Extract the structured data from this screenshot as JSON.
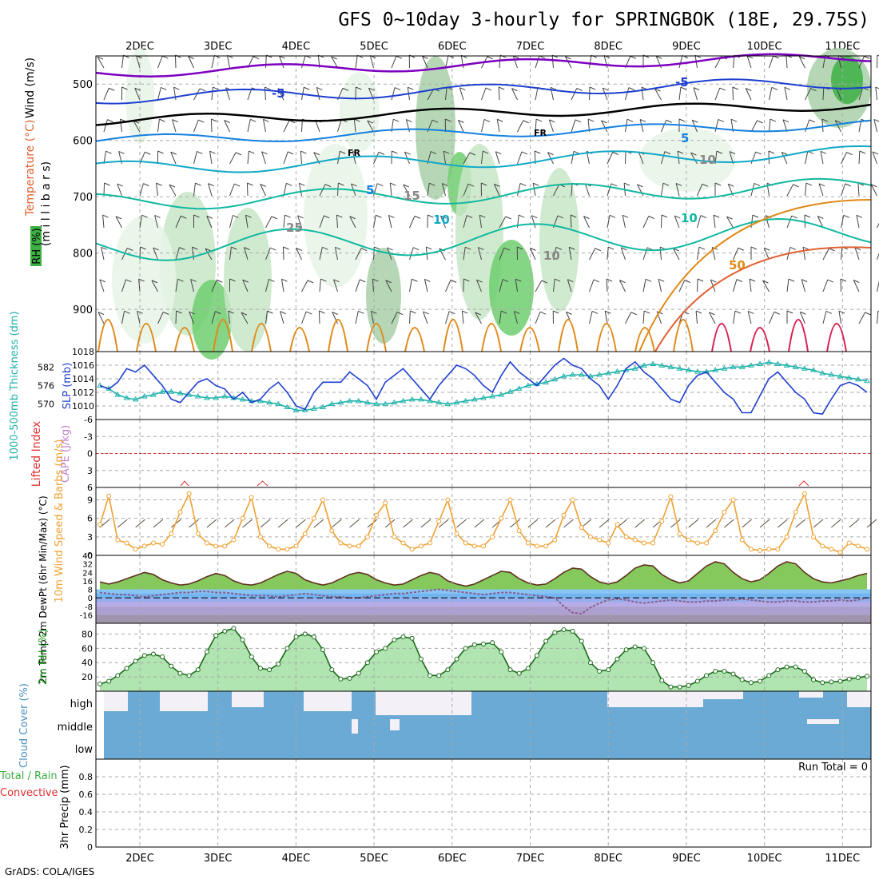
{
  "title": "GFS 0~10day 3-hourly for SPRINGBOK (18E, 29.75S)",
  "credit": "GrADS: COLA/IGES",
  "colors": {
    "grid": "#a9a9a9",
    "rh_fill": [
      "#e8f5e8",
      "#c8e6c8",
      "#a8d0a8",
      "#6fcf6f",
      "#3cb043"
    ],
    "temp_contours": [
      "#7d00c0",
      "#1f3fd0",
      "#1480e0",
      "#10a8c8",
      "#10b8a0",
      "#e08a1a",
      "#e06030",
      "#d82050"
    ],
    "slp": "#1f3fd0",
    "thickness": "#20b2aa",
    "lifted_zero": "#e03030",
    "cape": "#e03030",
    "wind_speed": "#f0a030",
    "barb": "#5a4a3a",
    "temp_line": "#603020",
    "dew_line": "#8a5a8a",
    "rh_line": "#1a6a1a",
    "cloud_blue": "#6aaad4",
    "cloud_clear": "#f4f0f8"
  },
  "chart_data": [
    {
      "panel": "upper_air",
      "type": "contour",
      "x_ticks": [
        "2DEC",
        "3DEC",
        "4DEC",
        "5DEC",
        "6DEC",
        "7DEC",
        "8DEC",
        "9DEC",
        "10DEC",
        "11DEC"
      ],
      "y_ticks": [
        500,
        600,
        700,
        800,
        900
      ],
      "ylabel": "(m i l l i b a r s)",
      "legend": [
        "Wind (m/s)",
        "Temperature (°C)",
        "RH (%)"
      ],
      "contour_labels": [
        "-5",
        "-5",
        "FR",
        "FR",
        "5",
        "5",
        "10",
        "10",
        "15",
        "10",
        "10",
        "50",
        "25"
      ],
      "temp_levels": [
        -10,
        -5,
        0,
        5,
        10,
        15,
        20,
        25,
        30
      ]
    },
    {
      "panel": "slp_thickness",
      "type": "line",
      "ylabel_left": "1000-500mb Thickness (dm)",
      "ylabel_right": "SLP (mb)",
      "y_ticks_left": [
        570,
        576,
        582
      ],
      "y_ticks_right": [
        1010,
        1012,
        1014,
        1016,
        1018
      ],
      "slp_ylim": [
        1008,
        1018
      ],
      "thk_ylim": [
        565,
        587
      ],
      "series": [
        {
          "name": "SLP (mb)",
          "values": [
            1013.0,
            1012.5,
            1013.5,
            1015.5,
            1015.0,
            1016.0,
            1014.5,
            1013.0,
            1011.0,
            1010.5,
            1012.0,
            1013.5,
            1014.0,
            1013.0,
            1012.5,
            1011.0,
            1012.0,
            1010.5,
            1011.0,
            1012.5,
            1013.5,
            1012.0,
            1010.0,
            1009.5,
            1012.0,
            1013.5,
            1013.5,
            1013.5,
            1015.0,
            1014.0,
            1013.0,
            1011.0,
            1013.5,
            1014.5,
            1015.5,
            1014.0,
            1012.5,
            1011.0,
            1013.0,
            1014.5,
            1016.0,
            1015.5,
            1014.5,
            1013.0,
            1012.0,
            1014.5,
            1016.5,
            1015.0,
            1014.0,
            1013.0,
            1014.5,
            1016.0,
            1017.0,
            1016.0,
            1015.5,
            1014.0,
            1013.0,
            1011.0,
            1013.0,
            1015.5,
            1016.5,
            1015.0,
            1014.0,
            1012.5,
            1011.0,
            1010.5,
            1013.0,
            1014.5,
            1015.0,
            1013.5,
            1012.0,
            1011.0,
            1009.0,
            1009.0,
            1011.5,
            1014.0,
            1015.0,
            1013.5,
            1012.0,
            1011.0,
            1009.0,
            1008.8,
            1011.0,
            1013.0,
            1013.5,
            1013.0,
            1012.0
          ]
        },
        {
          "name": "Thickness (dm)",
          "values": [
            576.0,
            575.0,
            573.0,
            572.0,
            571.5,
            572.5,
            573.0,
            574.0,
            574.0,
            573.5,
            573.0,
            572.5,
            572.0,
            572.0,
            572.5,
            572.0,
            571.5,
            571.0,
            571.0,
            570.5,
            570.0,
            569.0,
            568.0,
            568.0,
            568.5,
            569.0,
            570.0,
            570.5,
            571.0,
            571.0,
            570.5,
            570.0,
            570.0,
            570.5,
            571.0,
            571.5,
            571.5,
            571.0,
            570.5,
            570.0,
            570.5,
            571.0,
            571.5,
            572.0,
            572.5,
            573.0,
            574.0,
            575.0,
            576.0,
            576.5,
            577.0,
            578.0,
            579.0,
            579.5,
            579.5,
            579.0,
            579.5,
            580.0,
            580.5,
            581.0,
            581.5,
            582.5,
            583.0,
            582.5,
            582.0,
            581.5,
            581.0,
            580.5,
            580.5,
            581.0,
            581.5,
            582.0,
            582.0,
            582.5,
            583.0,
            583.5,
            583.0,
            582.5,
            582.0,
            581.5,
            581.0,
            580.0,
            579.5,
            579.0,
            578.5,
            578.0,
            577.5
          ]
        }
      ]
    },
    {
      "panel": "lifted_cape",
      "type": "line",
      "ylabel_left": "Lifted Index",
      "ylabel_right": "CAPE (J/kg)",
      "y_ticks": [
        -6,
        -3,
        0,
        3,
        6
      ],
      "ylim": [
        -6,
        6
      ]
    },
    {
      "panel": "wind10m",
      "type": "line",
      "ylabel": "10m Wind Speed & Barbs (m/s)",
      "y_ticks": [
        0,
        3,
        6,
        9
      ],
      "ylim": [
        0,
        11
      ],
      "series": [
        {
          "name": "Speed",
          "values": [
            5.0,
            9.6,
            2.5,
            2.0,
            1.0,
            1.5,
            2.0,
            1.8,
            3.5,
            7.0,
            10.0,
            3.5,
            2.0,
            1.5,
            1.5,
            2.5,
            6.0,
            9.4,
            3.0,
            1.5,
            1.0,
            1.0,
            1.5,
            3.5,
            6.0,
            9.0,
            4.0,
            2.0,
            1.5,
            1.5,
            3.0,
            6.5,
            8.5,
            3.0,
            2.0,
            1.0,
            1.5,
            2.0,
            5.5,
            9.0,
            3.5,
            2.0,
            1.5,
            1.5,
            3.0,
            6.0,
            9.0,
            4.0,
            2.0,
            1.5,
            1.5,
            2.5,
            6.5,
            9.0,
            4.5,
            3.0,
            2.5,
            2.0,
            5.0,
            3.0,
            2.5,
            2.0,
            2.0,
            5.5,
            9.5,
            3.5,
            2.5,
            2.0,
            2.0,
            4.0,
            7.0,
            9.0,
            2.5,
            1.0,
            0.8,
            1.0,
            1.0,
            3.0,
            7.0,
            10.0,
            3.0,
            1.5,
            1.0,
            0.5,
            2.0,
            1.5,
            1.0
          ]
        }
      ]
    },
    {
      "panel": "temp2m",
      "type": "area",
      "ylabel": "2m Temp 2m DewPt (6hr Min/Max) (°C)",
      "y_ticks": [
        -16,
        -8,
        0,
        8,
        16,
        24,
        32,
        40
      ],
      "ylim": [
        -24,
        40
      ],
      "series": [
        {
          "name": "2m Temp",
          "values": [
            15,
            13,
            15,
            18,
            21,
            24,
            22,
            17,
            14,
            12,
            13,
            16,
            20,
            23,
            21,
            16,
            13,
            12,
            14,
            18,
            22,
            25,
            23,
            17,
            14,
            12,
            14,
            18,
            22,
            24,
            22,
            17,
            14,
            12,
            13,
            17,
            21,
            24,
            22,
            16,
            13,
            11,
            13,
            17,
            21,
            25,
            24,
            18,
            14,
            12,
            13,
            18,
            24,
            28,
            27,
            20,
            15,
            13,
            15,
            21,
            28,
            31,
            30,
            22,
            17,
            14,
            16,
            23,
            30,
            34,
            32,
            24,
            18,
            15,
            17,
            23,
            30,
            34,
            32,
            24,
            18,
            15,
            14,
            16,
            18,
            21,
            23
          ]
        },
        {
          "name": "2m DewPt",
          "values": [
            5,
            4,
            3,
            3,
            2,
            1,
            2,
            3,
            4,
            5,
            5,
            6,
            6,
            5,
            5,
            4,
            3,
            2,
            2,
            2,
            1,
            2,
            3,
            4,
            3,
            2,
            1,
            1,
            0,
            0,
            1,
            2,
            3,
            4,
            4,
            5,
            6,
            7,
            8,
            7,
            6,
            5,
            4,
            3,
            4,
            5,
            5,
            4,
            3,
            2,
            1,
            0,
            -8,
            -14,
            -15,
            -9,
            -5,
            -2,
            -1,
            -2,
            -4,
            -5,
            -4,
            -3,
            -2,
            -3,
            -4,
            -4,
            -3,
            -3,
            -2,
            -2,
            -1,
            -2,
            -3,
            -4,
            -4,
            -3,
            -3,
            -4,
            -4,
            -3,
            -3,
            -2,
            -3,
            -2,
            0
          ]
        }
      ]
    },
    {
      "panel": "rh2m",
      "type": "area",
      "ylabel": "2m RH (%)",
      "y_ticks": [
        20,
        40,
        60,
        80
      ],
      "ylim": [
        0,
        95
      ],
      "series": [
        {
          "name": "2m RH",
          "values": [
            10,
            14,
            22,
            32,
            42,
            50,
            52,
            48,
            35,
            25,
            22,
            30,
            55,
            78,
            84,
            88,
            72,
            48,
            32,
            30,
            38,
            60,
            76,
            80,
            76,
            58,
            30,
            17,
            18,
            25,
            40,
            55,
            60,
            72,
            76,
            74,
            45,
            22,
            22,
            30,
            45,
            60,
            65,
            66,
            68,
            55,
            30,
            25,
            32,
            50,
            70,
            82,
            86,
            84,
            70,
            40,
            28,
            30,
            45,
            58,
            62,
            60,
            40,
            15,
            6,
            6,
            8,
            14,
            22,
            28,
            28,
            24,
            16,
            12,
            14,
            22,
            30,
            34,
            34,
            28,
            16,
            12,
            13,
            14,
            17,
            19,
            21
          ]
        }
      ]
    },
    {
      "panel": "cloud",
      "type": "bar",
      "ylabel": "Cloud Cover (%)",
      "categories": [
        "high",
        "middle",
        "low"
      ]
    },
    {
      "panel": "precip",
      "type": "bar",
      "ylabel": "3hr Precip (mm)",
      "legend": [
        "Total / Rain",
        "Convective"
      ],
      "y_ticks": [
        0,
        0.2,
        0.4,
        0.6,
        0.8
      ],
      "ylim": [
        0,
        1.0
      ],
      "annotation": "Run Total = 0",
      "bottom_ticks": [
        "2DEC",
        "3DEC",
        "4DEC",
        "5DEC",
        "6DEC",
        "7DEC",
        "8DEC",
        "9DEC",
        "10DEC",
        "11DEC"
      ]
    }
  ]
}
